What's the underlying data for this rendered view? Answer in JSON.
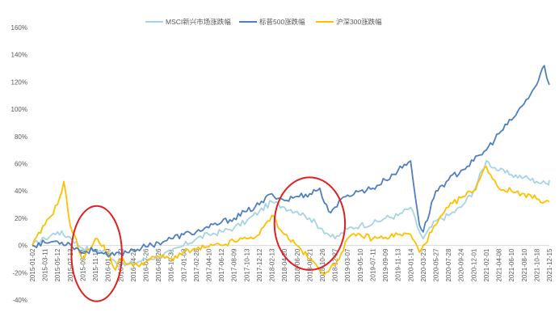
{
  "chart_data": {
    "type": "line",
    "title": "",
    "xlabel": "",
    "ylabel": "",
    "ylim": [
      -40,
      160
    ],
    "yticks": [
      -40,
      -20,
      0,
      20,
      40,
      60,
      80,
      100,
      120,
      140,
      160
    ],
    "ytick_labels": [
      "-40%",
      "-20%",
      "0%",
      "20%",
      "40%",
      "60%",
      "80%",
      "100%",
      "120%",
      "140%",
      "160%"
    ],
    "x_tick_labels": [
      "2015-01-02",
      "2015-03-11",
      "2015-05-12",
      "2015-07-13",
      "2015-09-11",
      "2015-11-16",
      "2016-01-19",
      "2016-03-22",
      "2016-04-24",
      "2016-07-26",
      "2016-08-26",
      "2016-10-31",
      "2017-01-03",
      "2017-02-28",
      "2017-04-10",
      "2017-06-12",
      "2017-08-09",
      "2017-10-13",
      "2017-12-12",
      "2018-02-13",
      "2018-04-20",
      "2018-06-20",
      "2018-08-21",
      "2018-10-26",
      "2018-12-27",
      "2019-03-07",
      "2019-05-10",
      "2019-07-11",
      "2019-09-09",
      "2019-11-13",
      "2020-01-14",
      "2020-03-23",
      "2020-05-27",
      "2020-07-28",
      "2020-09-24",
      "2020-12-01",
      "2021-02-01",
      "2021-04-08",
      "2021-06-10",
      "2021-08-10",
      "2021-10-18",
      "2021-12-15"
    ],
    "legend_position": "top",
    "grid": false,
    "series": [
      {
        "name": "MSCI新兴市场涨跌幅",
        "color": "#A8D4E2",
        "points": [
          [
            0,
            0
          ],
          [
            1,
            5
          ],
          [
            2,
            10
          ],
          [
            3,
            6
          ],
          [
            4,
            -2
          ],
          [
            5,
            -3
          ],
          [
            6,
            -5
          ],
          [
            6.6,
            -12
          ],
          [
            7,
            -15
          ],
          [
            8,
            -13
          ],
          [
            9,
            -10
          ],
          [
            10,
            -8
          ],
          [
            11,
            -5
          ],
          [
            12,
            0
          ],
          [
            13,
            5
          ],
          [
            14,
            8
          ],
          [
            15,
            10
          ],
          [
            16,
            13
          ],
          [
            17,
            18
          ],
          [
            18,
            25
          ],
          [
            19,
            32
          ],
          [
            20,
            28
          ],
          [
            21,
            25
          ],
          [
            21.6,
            22
          ],
          [
            22,
            20
          ],
          [
            23,
            12
          ],
          [
            23.5,
            8
          ],
          [
            24,
            5
          ],
          [
            25,
            12
          ],
          [
            26,
            15
          ],
          [
            27,
            16
          ],
          [
            28,
            20
          ],
          [
            29,
            22
          ],
          [
            30,
            28
          ],
          [
            30.7,
            10
          ],
          [
            31,
            5
          ],
          [
            32,
            18
          ],
          [
            33,
            22
          ],
          [
            34,
            28
          ],
          [
            35,
            40
          ],
          [
            36,
            62
          ],
          [
            37,
            55
          ],
          [
            38,
            52
          ],
          [
            39,
            50
          ],
          [
            40,
            47
          ],
          [
            40.9,
            45
          ],
          [
            41,
            48
          ]
        ]
      },
      {
        "name": "标普500涨跌幅",
        "color": "#4F7FC1",
        "points": [
          [
            0,
            0
          ],
          [
            1,
            2
          ],
          [
            2,
            3
          ],
          [
            3,
            1
          ],
          [
            4,
            -5
          ],
          [
            5,
            -3
          ],
          [
            6,
            -8
          ],
          [
            7,
            -6
          ],
          [
            8,
            -3
          ],
          [
            9,
            -1
          ],
          [
            10,
            2
          ],
          [
            11,
            5
          ],
          [
            12,
            8
          ],
          [
            13,
            10
          ],
          [
            14,
            13
          ],
          [
            15,
            17
          ],
          [
            16,
            20
          ],
          [
            17,
            25
          ],
          [
            18,
            30
          ],
          [
            19,
            38
          ],
          [
            20,
            33
          ],
          [
            21,
            36
          ],
          [
            22,
            38
          ],
          [
            22.8,
            42
          ],
          [
            23,
            35
          ],
          [
            23.5,
            25
          ],
          [
            24,
            28
          ],
          [
            25,
            37
          ],
          [
            26,
            40
          ],
          [
            27,
            42
          ],
          [
            28,
            48
          ],
          [
            29,
            55
          ],
          [
            30,
            62
          ],
          [
            30.7,
            15
          ],
          [
            31,
            10
          ],
          [
            32,
            40
          ],
          [
            33,
            48
          ],
          [
            34,
            55
          ],
          [
            35,
            62
          ],
          [
            36,
            70
          ],
          [
            37,
            82
          ],
          [
            38,
            92
          ],
          [
            39,
            104
          ],
          [
            40,
            118
          ],
          [
            40.6,
            132
          ],
          [
            41,
            118
          ]
        ]
      },
      {
        "name": "沪深300涨跌幅",
        "color": "#FFC000",
        "points": [
          [
            0,
            0
          ],
          [
            1,
            15
          ],
          [
            2,
            30
          ],
          [
            2.5,
            47
          ],
          [
            3,
            15
          ],
          [
            4,
            -10
          ],
          [
            5,
            5
          ],
          [
            6,
            -5
          ],
          [
            6.6,
            -18
          ],
          [
            7,
            -10
          ],
          [
            8,
            -15
          ],
          [
            9,
            -12
          ],
          [
            10,
            -8
          ],
          [
            11,
            -10
          ],
          [
            12,
            -5
          ],
          [
            13,
            -3
          ],
          [
            14,
            -1
          ],
          [
            15,
            0
          ],
          [
            16,
            3
          ],
          [
            17,
            5
          ],
          [
            18,
            8
          ],
          [
            19,
            22
          ],
          [
            20,
            8
          ],
          [
            21,
            0
          ],
          [
            22,
            -10
          ],
          [
            23,
            -20
          ],
          [
            24,
            -15
          ],
          [
            25,
            5
          ],
          [
            26,
            8
          ],
          [
            27,
            5
          ],
          [
            28,
            6
          ],
          [
            29,
            8
          ],
          [
            30,
            8
          ],
          [
            30.7,
            -5
          ],
          [
            31,
            0
          ],
          [
            32,
            15
          ],
          [
            33,
            28
          ],
          [
            34,
            35
          ],
          [
            35,
            40
          ],
          [
            36,
            58
          ],
          [
            37,
            42
          ],
          [
            38,
            40
          ],
          [
            39,
            38
          ],
          [
            40,
            34
          ],
          [
            41,
            32
          ]
        ]
      }
    ],
    "annotations": [
      {
        "type": "ellipse",
        "color": "#E02020",
        "x_center": 5.1,
        "y_center": -6,
        "x_radius": 2.0,
        "y_radius": 35
      },
      {
        "type": "ellipse",
        "color": "#E02020",
        "x_center": 22.0,
        "y_center": 16,
        "x_radius": 2.8,
        "y_radius": 34
      }
    ]
  }
}
